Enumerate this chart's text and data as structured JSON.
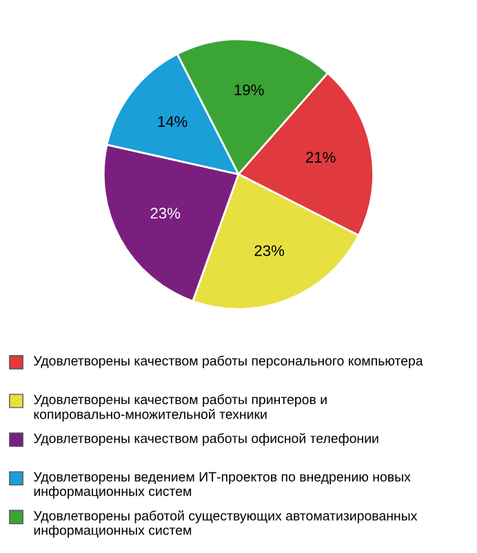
{
  "chart_data": {
    "type": "pie",
    "categories": [
      "Удовлетворены качеством работы персонального компьютера",
      "Удовлетворены качеством работы принтеров и копировально-множительной техники",
      "Удовлетворены качеством работы офисной телефонии",
      "Удовлетворены ведением ИТ-проектов по внедрению новых информационных систем",
      "Удовлетворены работой существующих автоматизированных информационных систем"
    ],
    "values": [
      21,
      23,
      23,
      14,
      19
    ],
    "value_labels": [
      "21%",
      "23%",
      "23%",
      "14%",
      "19%"
    ],
    "colors": [
      "#e0393e",
      "#e8e040",
      "#7b1f7f",
      "#1a9fd8",
      "#3aa535"
    ],
    "legend": "bottom"
  }
}
